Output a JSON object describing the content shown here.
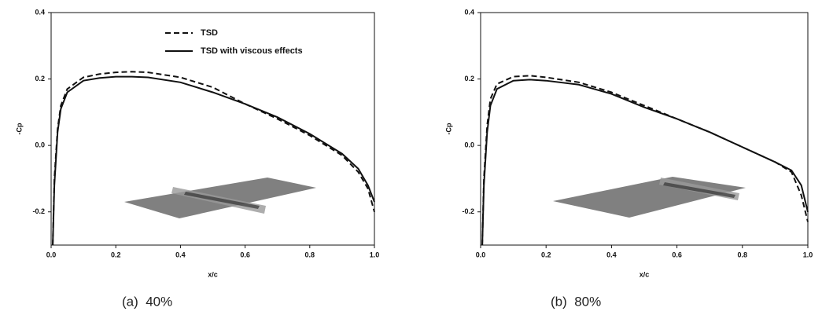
{
  "chart_data": [
    {
      "type": "line",
      "xlabel": "x/c",
      "ylabel": "-Cp",
      "caption": "(a)  40%",
      "xlim": [
        0,
        1
      ],
      "ylim": [
        -0.3,
        0.4
      ],
      "xticks": [
        {
          "value": 0,
          "label": "0.0"
        },
        0.2,
        0.4,
        0.6,
        0.8,
        {
          "value": 1,
          "label": "1.0"
        }
      ],
      "yticks": [
        -0.2,
        {
          "value": 0,
          "label": "0.0"
        },
        0.2,
        0.4
      ],
      "legend": "upper-center",
      "x": [
        0.005,
        0.01,
        0.02,
        0.03,
        0.05,
        0.1,
        0.15,
        0.2,
        0.25,
        0.3,
        0.4,
        0.5,
        0.6,
        0.7,
        0.8,
        0.9,
        0.95,
        0.98,
        1.0
      ],
      "series": [
        {
          "name": "TSD",
          "color": "#111",
          "style": "dashed",
          "values": [
            -0.3,
            -0.1,
            0.05,
            0.12,
            0.17,
            0.205,
            0.215,
            0.22,
            0.222,
            0.22,
            0.205,
            0.175,
            0.125,
            0.08,
            0.03,
            -0.03,
            -0.08,
            -0.13,
            -0.2
          ]
        },
        {
          "name": "TSD with viscous effects",
          "color": "#111",
          "style": "solid",
          "values": [
            -0.3,
            -0.12,
            0.04,
            0.11,
            0.16,
            0.195,
            0.203,
            0.207,
            0.207,
            0.205,
            0.19,
            0.16,
            0.125,
            0.085,
            0.035,
            -0.025,
            -0.07,
            -0.12,
            -0.17
          ]
        }
      ]
    },
    {
      "type": "line",
      "xlabel": "x/c",
      "ylabel": "-Cp",
      "caption": "(b)  80%",
      "xlim": [
        0,
        1
      ],
      "ylim": [
        -0.3,
        0.4
      ],
      "xticks": [
        {
          "value": 0,
          "label": "0.0"
        },
        0.2,
        0.4,
        0.6,
        0.8,
        {
          "value": 1,
          "label": "1.0"
        }
      ],
      "yticks": [
        -0.2,
        {
          "value": 0,
          "label": "0.0"
        },
        0.2,
        0.4
      ],
      "x": [
        0.005,
        0.01,
        0.02,
        0.03,
        0.05,
        0.1,
        0.15,
        0.2,
        0.3,
        0.4,
        0.5,
        0.6,
        0.7,
        0.8,
        0.9,
        0.95,
        0.98,
        1.0
      ],
      "series": [
        {
          "color": "#111",
          "style": "dashed",
          "values": [
            -0.3,
            -0.1,
            0.06,
            0.14,
            0.185,
            0.207,
            0.21,
            0.205,
            0.19,
            0.16,
            0.12,
            0.08,
            0.04,
            -0.005,
            -0.05,
            -0.08,
            -0.15,
            -0.23
          ]
        },
        {
          "color": "#111",
          "style": "solid",
          "values": [
            -0.3,
            -0.12,
            0.04,
            0.12,
            0.17,
            0.195,
            0.198,
            0.195,
            0.183,
            0.155,
            0.115,
            0.08,
            0.04,
            -0.005,
            -0.05,
            -0.075,
            -0.12,
            -0.2
          ]
        }
      ]
    }
  ]
}
